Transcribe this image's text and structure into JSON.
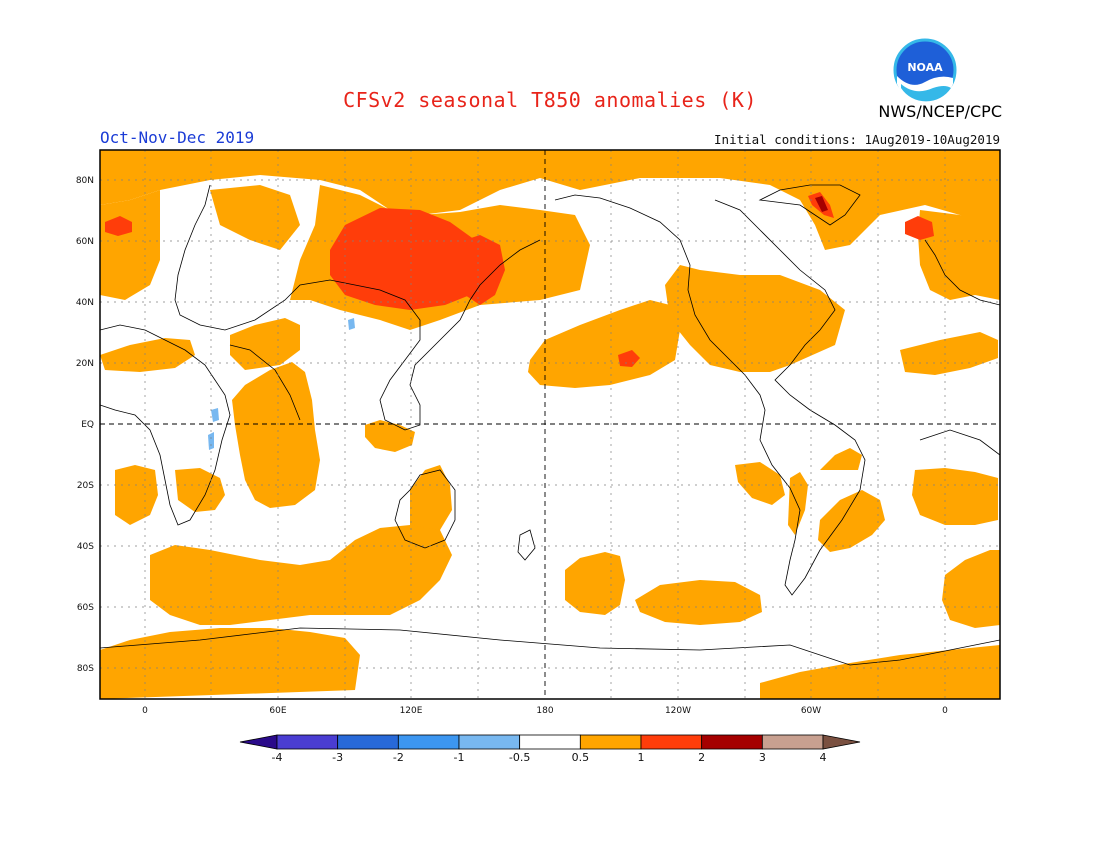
{
  "header": {
    "title": "CFSv2 seasonal T850 anomalies (K)",
    "season": "Oct-Nov-Dec 2019",
    "initial_conditions": "Initial conditions: 1Aug2019-10Aug2019",
    "agency": "NWS/NCEP/CPC",
    "logo_text": "NOAA"
  },
  "colors": {
    "anom_0_5_to_1": "#ffa500",
    "anom_1_to_2": "#ff3d0a",
    "anom_2_to_3": "#a50000",
    "anom_neg_0_5_to_neg_1": "#78b8f0",
    "anom_neg_1_to_neg_2": "#3c96f0",
    "title": "#e8241a",
    "season": "#1b3cd6"
  },
  "map": {
    "lat_labels": [
      "80N",
      "60N",
      "40N",
      "20N",
      "EQ",
      "20S",
      "40S",
      "60S",
      "80S"
    ],
    "lon_labels": [
      "0",
      "60E",
      "120E",
      "180",
      "120W",
      "60W",
      "0"
    ]
  },
  "colorbar": {
    "colors": [
      "#2a0a8a",
      "#4a3dd2",
      "#2869d8",
      "#3c96f0",
      "#78b8f0",
      "#ffffff",
      "#ffa500",
      "#ff3d0a",
      "#a50000",
      "#c8a090",
      "#7a5040"
    ],
    "tick_labels": [
      "-4",
      "-3",
      "-2",
      "-1",
      "-0.5",
      "0.5",
      "1",
      "2",
      "3",
      "4"
    ]
  }
}
